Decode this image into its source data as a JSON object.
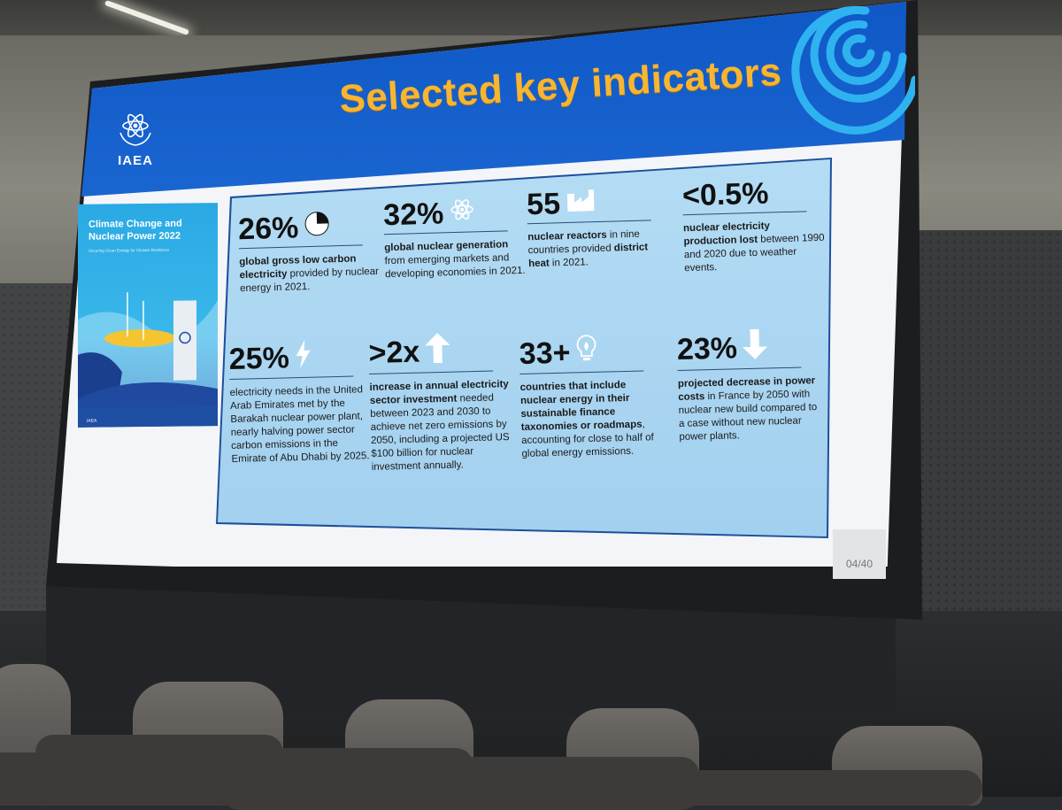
{
  "slide": {
    "title": "Selected key indicators",
    "logo_text": "IAEA",
    "page_number": "04/40",
    "cover": {
      "title": "Climate Change and Nuclear Power 2022",
      "subtitle": "Securing Clean Energy for Climate Resilience"
    },
    "stats": [
      {
        "value": "26%",
        "icon": "pie-chart-icon",
        "desc_html": "<b>global gross low carbon electricity</b> provided by nuclear energy in 2021."
      },
      {
        "value": "32%",
        "icon": "atom-icon",
        "desc_html": "<b>global nuclear generation</b> from emerging markets and developing economies in 2021."
      },
      {
        "value": "55",
        "icon": "factory-icon",
        "desc_html": "<b>nuclear reactors</b> in nine countries provided <b>district heat</b> in 2021."
      },
      {
        "value": "<0.5%",
        "icon": "",
        "desc_html": "<b>nuclear electricity production lost</b> between 1990 and 2020 due to weather events."
      },
      {
        "value": "25%",
        "icon": "lightning-icon",
        "desc_html": "electricity needs in the United Arab Emirates met by the Barakah nuclear power plant, nearly halving power sector carbon emissions in the Emirate of Abu Dhabi by 2025."
      },
      {
        "value": ">2x",
        "icon": "arrow-up-icon",
        "desc_html": "<b>increase in annual electricity sector investment</b> needed between 2023 and 2030 to achieve net zero emissions by 2050, including a projected US $100 billion for nuclear investment annually."
      },
      {
        "value": "33+",
        "icon": "bulb-icon",
        "desc_html": "<b>countries that include nuclear energy in their sustainable finance taxonomies or roadmaps</b>, accounting for close to half of global energy emissions."
      },
      {
        "value": "23%",
        "icon": "arrow-down-icon",
        "desc_html": "<b>projected decrease in power costs</b> in France by 2050 with nuclear new build compared to a case without new nuclear power plants."
      }
    ]
  },
  "colors": {
    "banner": "#1a66d1",
    "title": "#f7b531",
    "panel": "#a7d3ef"
  }
}
